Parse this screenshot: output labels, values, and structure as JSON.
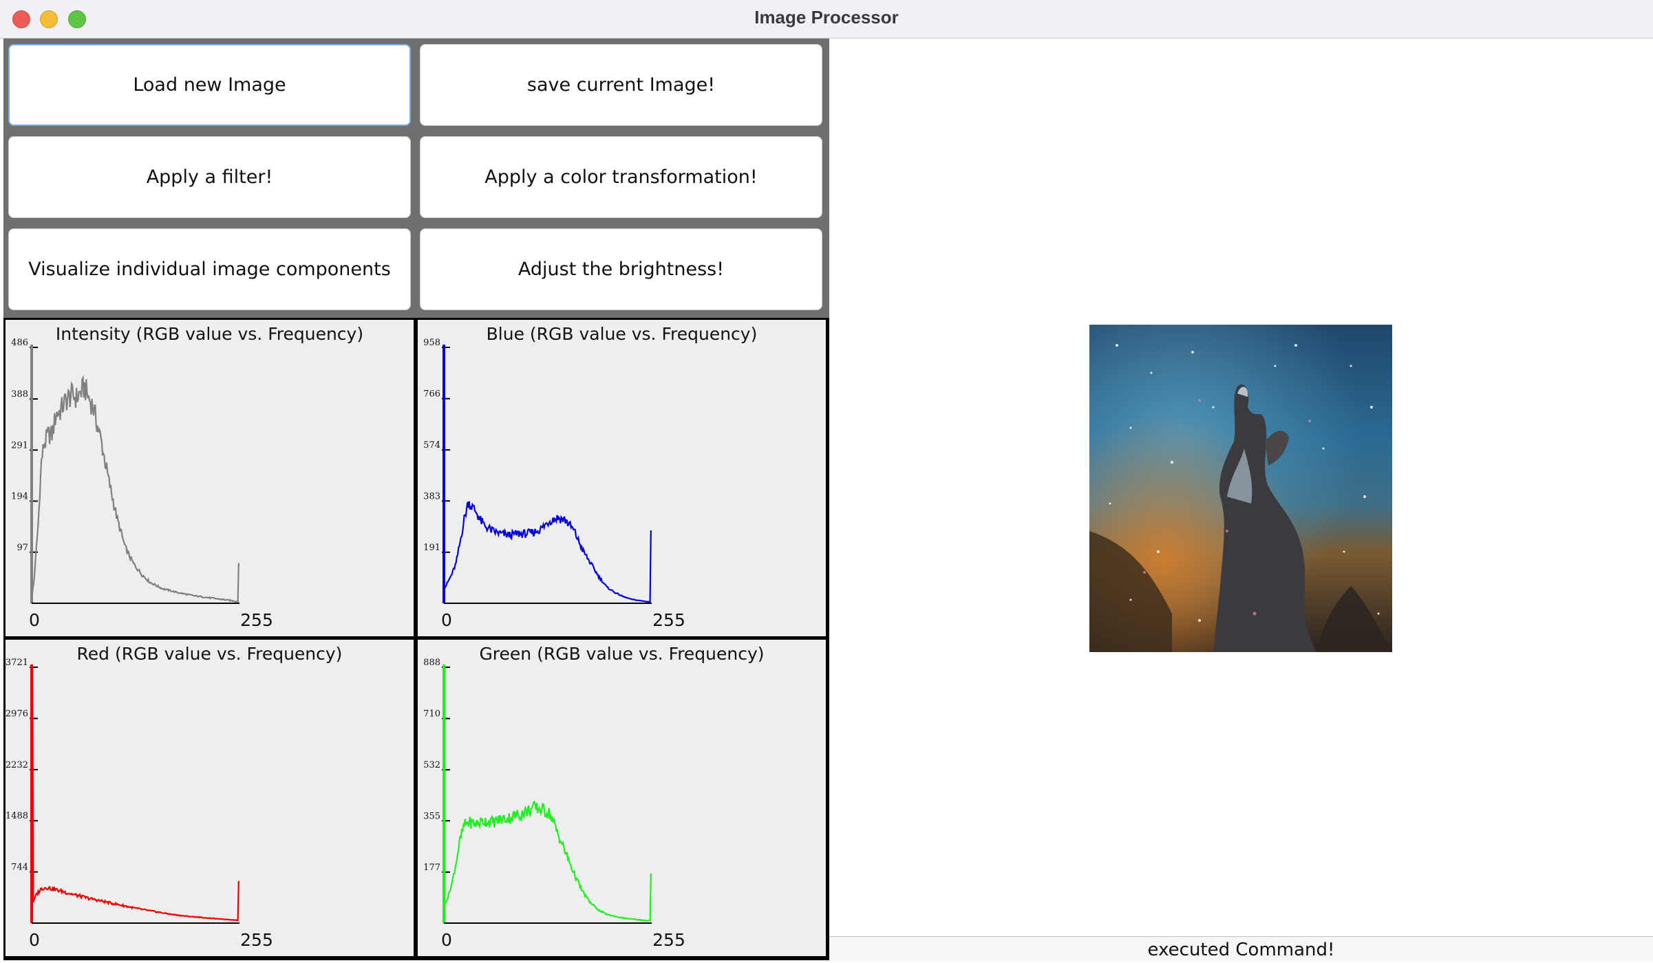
{
  "window": {
    "title": "Image Processor"
  },
  "buttons": {
    "load": "Load new Image",
    "save": "save current Image!",
    "filter": "Apply a filter!",
    "color": "Apply a color transformation!",
    "visualize": "Visualize individual image components",
    "brightness": "Adjust the brightness!"
  },
  "histograms": [
    {
      "title": "Intensity (RGB value vs. Frequency)",
      "color": "#808080",
      "ticks": [
        "486",
        "388",
        "291",
        "194",
        "97"
      ],
      "max": 486,
      "x_min_label": "0",
      "x_max_label": "255",
      "profile": [
        [
          0,
          10
        ],
        [
          3,
          45
        ],
        [
          8,
          150
        ],
        [
          12,
          270
        ],
        [
          15,
          300
        ],
        [
          20,
          320
        ],
        [
          25,
          320
        ],
        [
          30,
          360
        ],
        [
          35,
          365
        ],
        [
          40,
          380
        ],
        [
          45,
          390
        ],
        [
          50,
          395
        ],
        [
          55,
          390
        ],
        [
          60,
          400
        ],
        [
          65,
          410
        ],
        [
          70,
          390
        ],
        [
          75,
          375
        ],
        [
          85,
          310
        ],
        [
          95,
          230
        ],
        [
          105,
          160
        ],
        [
          115,
          105
        ],
        [
          125,
          75
        ],
        [
          135,
          55
        ],
        [
          145,
          40
        ],
        [
          160,
          28
        ],
        [
          180,
          20
        ],
        [
          200,
          14
        ],
        [
          220,
          10
        ],
        [
          240,
          6
        ],
        [
          250,
          4
        ],
        [
          253,
          3
        ],
        [
          254,
          75
        ],
        [
          255,
          75
        ]
      ]
    },
    {
      "title": "Blue (RGB value vs. Frequency)",
      "color": "#0000dd",
      "ticks": [
        "958",
        "766",
        "574",
        "383",
        "191"
      ],
      "max": 958,
      "x_min_label": "0",
      "x_max_label": "255",
      "profile": [
        [
          0,
          50
        ],
        [
          5,
          80
        ],
        [
          10,
          110
        ],
        [
          15,
          150
        ],
        [
          20,
          230
        ],
        [
          25,
          315
        ],
        [
          30,
          380
        ],
        [
          35,
          360
        ],
        [
          40,
          340
        ],
        [
          45,
          310
        ],
        [
          50,
          290
        ],
        [
          60,
          270
        ],
        [
          70,
          260
        ],
        [
          80,
          255
        ],
        [
          90,
          260
        ],
        [
          100,
          260
        ],
        [
          110,
          265
        ],
        [
          120,
          280
        ],
        [
          130,
          310
        ],
        [
          140,
          320
        ],
        [
          150,
          310
        ],
        [
          160,
          270
        ],
        [
          170,
          200
        ],
        [
          180,
          150
        ],
        [
          190,
          100
        ],
        [
          200,
          60
        ],
        [
          210,
          40
        ],
        [
          220,
          25
        ],
        [
          230,
          15
        ],
        [
          240,
          10
        ],
        [
          250,
          6
        ],
        [
          253,
          5
        ],
        [
          254,
          270
        ],
        [
          255,
          270
        ]
      ]
    },
    {
      "title": "Red (RGB value vs. Frequency)",
      "color": "#ee0000",
      "ticks": [
        "3721",
        "2976",
        "2232",
        "1488",
        "744"
      ],
      "max": 3721,
      "x_min_label": "0",
      "x_max_label": "255",
      "profile": [
        [
          0,
          3721
        ],
        [
          1,
          3721
        ],
        [
          2,
          300
        ],
        [
          6,
          420
        ],
        [
          12,
          500
        ],
        [
          18,
          520
        ],
        [
          25,
          500
        ],
        [
          35,
          470
        ],
        [
          50,
          420
        ],
        [
          70,
          360
        ],
        [
          90,
          310
        ],
        [
          110,
          260
        ],
        [
          130,
          210
        ],
        [
          150,
          170
        ],
        [
          170,
          130
        ],
        [
          190,
          100
        ],
        [
          210,
          80
        ],
        [
          230,
          60
        ],
        [
          250,
          45
        ],
        [
          253,
          40
        ],
        [
          254,
          600
        ],
        [
          255,
          600
        ]
      ]
    },
    {
      "title": "Green (RGB value vs. Frequency)",
      "color": "#22ee22",
      "ticks": [
        "888",
        "710",
        "532",
        "355",
        "177"
      ],
      "max": 888,
      "x_min_label": "0",
      "x_max_label": "255",
      "profile": [
        [
          0,
          60
        ],
        [
          5,
          90
        ],
        [
          10,
          140
        ],
        [
          15,
          210
        ],
        [
          20,
          290
        ],
        [
          25,
          340
        ],
        [
          30,
          350
        ],
        [
          40,
          345
        ],
        [
          50,
          355
        ],
        [
          60,
          350
        ],
        [
          70,
          360
        ],
        [
          80,
          365
        ],
        [
          90,
          375
        ],
        [
          100,
          385
        ],
        [
          110,
          400
        ],
        [
          120,
          395
        ],
        [
          130,
          380
        ],
        [
          140,
          310
        ],
        [
          150,
          240
        ],
        [
          160,
          170
        ],
        [
          170,
          110
        ],
        [
          180,
          70
        ],
        [
          190,
          45
        ],
        [
          200,
          30
        ],
        [
          215,
          20
        ],
        [
          230,
          14
        ],
        [
          245,
          10
        ],
        [
          253,
          8
        ],
        [
          254,
          170
        ],
        [
          255,
          170
        ]
      ]
    }
  ],
  "status": "executed Command!"
}
